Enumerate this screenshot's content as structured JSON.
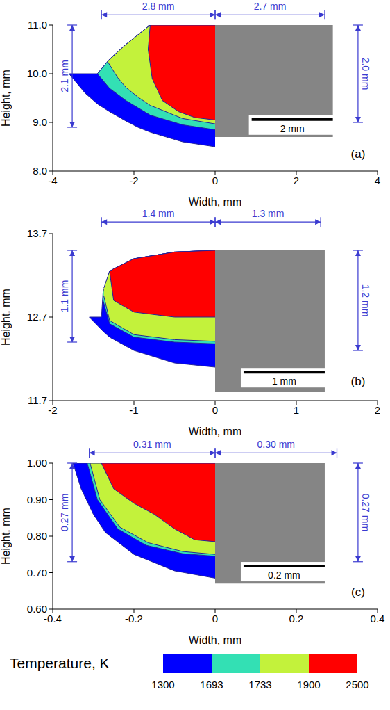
{
  "chart_data": [
    {
      "type": "area",
      "panel": "(a)",
      "xlabel": "Width, mm",
      "ylabel": "Height, mm",
      "xlim": [
        -4,
        4
      ],
      "ylim": [
        8,
        11
      ],
      "xticks": [
        -4,
        -2,
        0,
        2,
        4
      ],
      "yticks": [
        {
          "value": 8,
          "label": "8.0"
        },
        {
          "value": 9,
          "label": "9.0"
        },
        {
          "value": 10,
          "label": "10.0"
        },
        {
          "value": 11,
          "label": "11.0"
        }
      ],
      "regions": [
        {
          "temperature": 1300,
          "x": [
            -3.6,
            -3.2,
            -2.9,
            -2.6,
            -2.2,
            -1.9,
            -1.6,
            -0.8,
            0
          ],
          "y_low": [
            10.0,
            9.6,
            9.38,
            9.22,
            9.03,
            8.9,
            8.8,
            8.6,
            8.5
          ],
          "y_high": [
            10.0,
            10.0,
            10.0,
            10.3,
            10.6,
            10.8,
            11.0,
            11.0,
            11.0
          ]
        },
        {
          "temperature": 1693,
          "x": [
            -2.9,
            -2.6,
            -2.2,
            -1.9,
            -1.6,
            -0.8,
            0
          ],
          "y_low": [
            10.0,
            9.7,
            9.45,
            9.3,
            9.15,
            8.95,
            8.85
          ],
          "y_high": [
            10.0,
            10.3,
            10.6,
            10.8,
            11.0,
            11.0,
            11.0
          ]
        },
        {
          "temperature": 1733,
          "x": [
            -2.65,
            -2.4,
            -2.2,
            -1.9,
            -1.6,
            -0.8,
            0
          ],
          "y_low": [
            10.25,
            9.92,
            9.72,
            9.52,
            9.35,
            9.08,
            8.97
          ],
          "y_high": [
            10.25,
            10.45,
            10.6,
            10.8,
            11.0,
            11.0,
            11.0
          ]
        },
        {
          "temperature": 1900,
          "x": [
            -1.6,
            -1.65,
            -1.55,
            -1.3,
            -0.9,
            -0.5,
            0
          ],
          "y_low": [
            11.0,
            10.5,
            9.9,
            9.45,
            9.22,
            9.1,
            9.05
          ],
          "y_high": [
            11.0,
            11.0,
            11.0,
            11.0,
            11.0,
            11.0,
            11.0
          ]
        }
      ],
      "dimensions": [
        {
          "label": "2.8 mm",
          "value": 2.8,
          "side": "top-left"
        },
        {
          "label": "2.7 mm",
          "value": 2.7,
          "side": "top-right"
        },
        {
          "label": "2.1 mm",
          "value": 2.1,
          "side": "left"
        },
        {
          "label": "2.0 mm",
          "value": 2.0,
          "side": "right"
        }
      ],
      "micrograph": {
        "x": [
          0,
          2.9
        ],
        "y": [
          8.7,
          11.0
        ]
      },
      "scale_bar": {
        "label": "2 mm",
        "length": 2
      }
    },
    {
      "type": "area",
      "panel": "(b)",
      "xlabel": "Width, mm",
      "ylabel": "Height, mm",
      "xlim": [
        -2,
        2
      ],
      "ylim": [
        11.7,
        13.7
      ],
      "xticks": [
        -2,
        -1,
        0,
        1,
        2
      ],
      "yticks": [
        11.7,
        12.7,
        13.7
      ],
      "regions": [
        {
          "temperature": 1300,
          "x": [
            -1.55,
            -1.4,
            -1.38,
            -1.3,
            -1.0,
            -0.5,
            0
          ],
          "y_low": [
            12.7,
            12.55,
            12.53,
            12.46,
            12.3,
            12.15,
            12.1
          ],
          "y_high": [
            12.7,
            12.7,
            13.0,
            13.25,
            13.4,
            13.48,
            13.5
          ]
        },
        {
          "temperature": 1693,
          "x": [
            -1.38,
            -1.3,
            -1.0,
            -0.5,
            0
          ],
          "y_low": [
            12.9,
            12.62,
            12.46,
            12.4,
            12.38
          ],
          "y_high": [
            13.0,
            13.25,
            13.4,
            13.48,
            13.5
          ]
        },
        {
          "temperature": 1733,
          "x": [
            -1.37,
            -1.3,
            -1.0,
            -0.5,
            0
          ],
          "y_low": [
            12.95,
            12.66,
            12.49,
            12.43,
            12.41
          ],
          "y_high": [
            13.05,
            13.25,
            13.4,
            13.48,
            13.5
          ]
        },
        {
          "temperature": 1900,
          "x": [
            -1.3,
            -1.25,
            -1.0,
            -0.5,
            0
          ],
          "y_low": [
            13.25,
            12.9,
            12.76,
            12.7,
            12.7
          ],
          "y_high": [
            13.25,
            13.28,
            13.4,
            13.48,
            13.5
          ]
        }
      ],
      "dimensions": [
        {
          "label": "1.4 mm",
          "value": 1.4,
          "side": "top-left"
        },
        {
          "label": "1.3 mm",
          "value": 1.3,
          "side": "top-right"
        },
        {
          "label": "1.1 mm",
          "value": 1.1,
          "side": "left"
        },
        {
          "label": "1.2 mm",
          "value": 1.2,
          "side": "right"
        }
      ],
      "micrograph": {
        "x": [
          0,
          1.35
        ],
        "y": [
          11.8,
          13.5
        ]
      },
      "scale_bar": {
        "label": "1 mm",
        "length": 1
      }
    },
    {
      "type": "area",
      "panel": "(c)",
      "xlabel": "Width, mm",
      "ylabel": "Height, mm",
      "xlim": [
        -0.4,
        0.4
      ],
      "ylim": [
        0.6,
        1.0
      ],
      "xticks": [
        -0.4,
        -0.2,
        0,
        0.2,
        0.4
      ],
      "yticks": [
        {
          "value": 0.6,
          "label": "0.60"
        },
        {
          "value": 0.7,
          "label": "0.70"
        },
        {
          "value": 0.8,
          "label": "0.80"
        },
        {
          "value": 0.9,
          "label": "0.90"
        },
        {
          "value": 1.0,
          "label": "1.00"
        }
      ],
      "regions": [
        {
          "temperature": 1300,
          "x": [
            -0.35,
            -0.33,
            -0.3,
            -0.27,
            -0.2,
            -0.1,
            0
          ],
          "y_low": [
            1.0,
            0.93,
            0.86,
            0.81,
            0.75,
            0.705,
            0.685
          ],
          "y_high": [
            1.0,
            1.0,
            1.0,
            1.0,
            1.0,
            1.0,
            1.0
          ]
        },
        {
          "temperature": 1693,
          "x": [
            -0.315,
            -0.29,
            -0.24,
            -0.17,
            -0.08,
            0
          ],
          "y_low": [
            1.0,
            0.9,
            0.82,
            0.775,
            0.752,
            0.745
          ],
          "y_high": [
            1.0,
            1.0,
            1.0,
            1.0,
            1.0,
            1.0
          ]
        },
        {
          "temperature": 1733,
          "x": [
            -0.308,
            -0.284,
            -0.235,
            -0.165,
            -0.08,
            0
          ],
          "y_low": [
            1.0,
            0.9,
            0.825,
            0.782,
            0.758,
            0.75
          ],
          "y_high": [
            1.0,
            1.0,
            1.0,
            1.0,
            1.0,
            1.0
          ]
        },
        {
          "temperature": 1900,
          "x": [
            -0.28,
            -0.25,
            -0.2,
            -0.15,
            -0.1,
            -0.05,
            0
          ],
          "y_low": [
            1.0,
            0.93,
            0.89,
            0.86,
            0.82,
            0.79,
            0.785
          ],
          "y_high": [
            1.0,
            1.0,
            1.0,
            1.0,
            1.0,
            1.0,
            1.0
          ]
        }
      ],
      "dimensions": [
        {
          "label": "0.31 mm",
          "value": 0.31,
          "side": "top-left"
        },
        {
          "label": "0.30 mm",
          "value": 0.3,
          "side": "top-right"
        },
        {
          "label": "0.27 mm",
          "value": 0.27,
          "side": "left"
        },
        {
          "label": "0.27 mm",
          "value": 0.27,
          "side": "right"
        }
      ],
      "micrograph": {
        "x": [
          0,
          0.27
        ],
        "y": [
          0.67,
          1.0
        ]
      },
      "scale_bar": {
        "label": "0.2 mm",
        "length": 0.2
      }
    }
  ],
  "colorbar": {
    "label": "Temperature, K",
    "ticks": [
      1300,
      1693,
      1733,
      1900,
      2500
    ],
    "colors": [
      "#0000ff",
      "#33e0b4",
      "#c3f23b",
      "#ff0000"
    ]
  }
}
